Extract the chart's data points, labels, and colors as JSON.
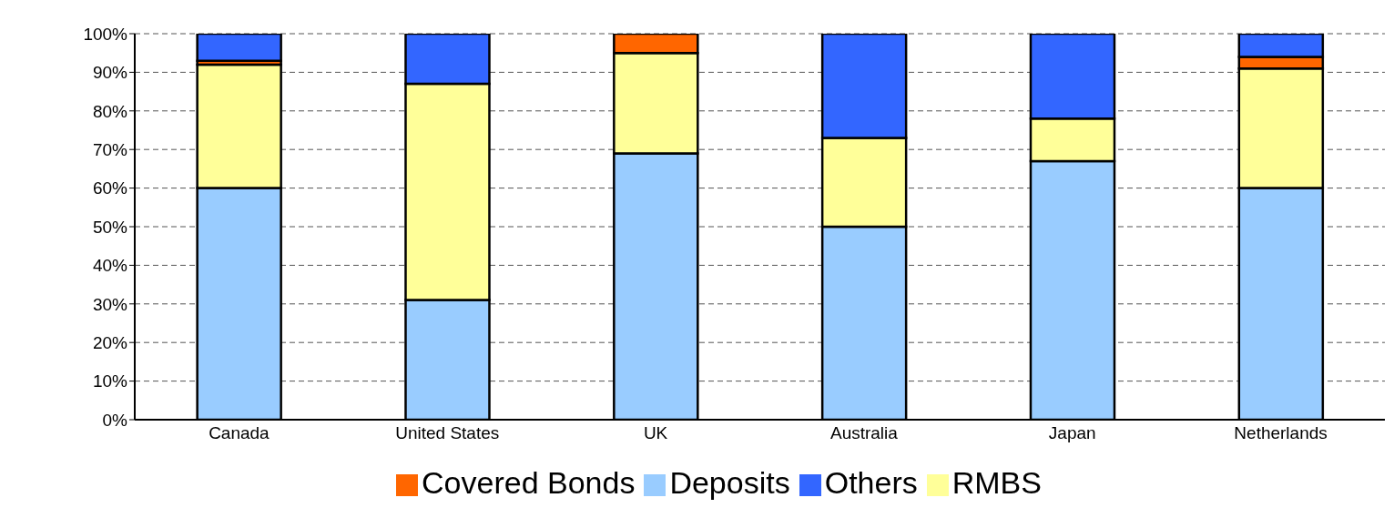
{
  "chart_data": {
    "type": "bar",
    "stacked": true,
    "categories": [
      "Canada",
      "United States",
      "UK",
      "Australia",
      "Japan",
      "Netherlands"
    ],
    "series": [
      {
        "name": "Deposits",
        "color": "#99ccff",
        "values": [
          60,
          31,
          69,
          50,
          67,
          60
        ]
      },
      {
        "name": "RMBS",
        "color": "#ffff99",
        "values": [
          32,
          56,
          26,
          23,
          11,
          31
        ]
      },
      {
        "name": "Covered Bonds",
        "color": "#ff6600",
        "values": [
          1,
          0,
          5,
          0,
          0,
          3
        ]
      },
      {
        "name": "Others",
        "color": "#3366ff",
        "values": [
          7,
          13,
          0,
          27,
          22,
          6
        ]
      }
    ],
    "ylim": [
      0,
      100
    ],
    "yticks": [
      {
        "value": 0,
        "label": "0%"
      },
      {
        "value": 10,
        "label": "10%"
      },
      {
        "value": 20,
        "label": "20%"
      },
      {
        "value": 30,
        "label": "30%"
      },
      {
        "value": 40,
        "label": "40%"
      },
      {
        "value": 50,
        "label": "50%"
      },
      {
        "value": 60,
        "label": "60%"
      },
      {
        "value": 70,
        "label": "70%"
      },
      {
        "value": 80,
        "label": "80%"
      },
      {
        "value": 90,
        "label": "90%"
      },
      {
        "value": 100,
        "label": "100%"
      }
    ],
    "grid": "y",
    "legend": "bottom"
  }
}
